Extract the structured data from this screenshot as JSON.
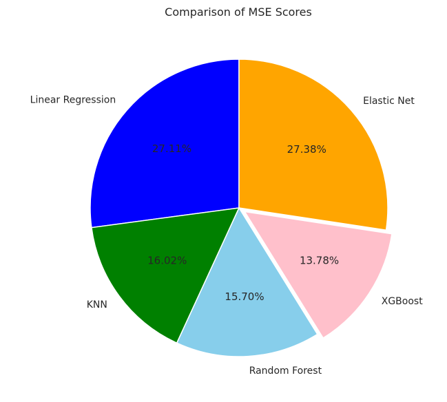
{
  "chart_data": {
    "type": "pie",
    "title": "Comparison of MSE Scores",
    "categories": [
      "Linear Regression",
      "Elastic Net",
      "XGBoost",
      "Random Forest",
      "KNN"
    ],
    "values": [
      27.11,
      27.38,
      13.78,
      15.7,
      16.02
    ],
    "value_labels": [
      "27.11%",
      "27.38%",
      "13.78%",
      "15.70%",
      "16.02%"
    ],
    "colors": [
      "#0000ff",
      "#ffa500",
      "#ffc0cb",
      "#87ceeb",
      "#008000"
    ],
    "exploded": [
      false,
      false,
      true,
      false,
      false
    ],
    "legend": "none"
  }
}
